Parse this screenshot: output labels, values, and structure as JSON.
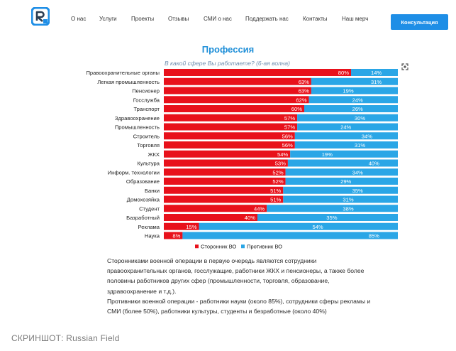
{
  "header": {
    "nav": [
      "О нас",
      "Услуги",
      "Проекты",
      "Отзывы",
      "СМИ о нас",
      "Поддержать нас",
      "Контакты",
      "Наш мерч"
    ],
    "cta_label": "Консультация",
    "logo_icon": "rf-logo-icon"
  },
  "chart": {
    "expand_icon": "expand-icon"
  },
  "chart_data": {
    "type": "bar",
    "orientation": "horizontal",
    "stacked": true,
    "title": "Профессия",
    "subtitle": "В какой сфере Вы работаете? (6-ая волна)",
    "categories": [
      "Правоохранительные органы",
      "Легкая промышленность",
      "Пенсионер",
      "Госслужба",
      "Транспорт",
      "Здравоохранение",
      "Промышленность",
      "Строитель",
      "Торговля",
      "ЖКХ",
      "Культура",
      "Информ. технологии",
      "Образование",
      "Банки",
      "Домохозяйка",
      "Студент",
      "Базработный",
      "Реклама",
      "Наука"
    ],
    "series": [
      {
        "name": "Сторонник ВО",
        "color": "#e8111b",
        "values": [
          80,
          63,
          63,
          62,
          60,
          57,
          57,
          56,
          56,
          54,
          53,
          52,
          52,
          51,
          51,
          44,
          40,
          15,
          8
        ],
        "labels": [
          "80%",
          "63%",
          "63%",
          "62%",
          "60%",
          "57%",
          "57%",
          "56%",
          "56%",
          "54%",
          "53%",
          "52%",
          "52%",
          "51%",
          "51%",
          "44%",
          "40%",
          "15%",
          "8%"
        ]
      },
      {
        "name": "Противник ВО",
        "color": "#2aa6e6",
        "values": [
          14,
          31,
          19,
          24,
          26,
          30,
          24,
          34,
          31,
          19,
          40,
          34,
          29,
          35,
          31,
          38,
          35,
          54,
          85
        ],
        "labels": [
          "14%",
          "31%",
          "19%",
          "24%",
          "26%",
          "30%",
          "24%",
          "34%",
          "31%",
          "19%",
          "40%",
          "34%",
          "29%",
          "35%",
          "31%",
          "38%",
          "35%",
          "54%",
          "85%"
        ]
      }
    ],
    "xlim": [
      0,
      100
    ],
    "legend": "bottom-center"
  },
  "caption": {
    "p1": "Сторонниками военной операции в первую очередь являются сотрудники правоохранительных органов, госслужащие, работники ЖКХ и пенсионеры, а также более половины работников других сфер (промышленности, торговля, образование, здравоохранение и т.д.).",
    "p2": "Противники военной операции - работники науки (около 85%), сотрудники сферы рекламы и СМИ (более 50%), работники культуры, студенты и безработные (около 40%)"
  },
  "credit": "СКРИНШОТ: Russian Field"
}
